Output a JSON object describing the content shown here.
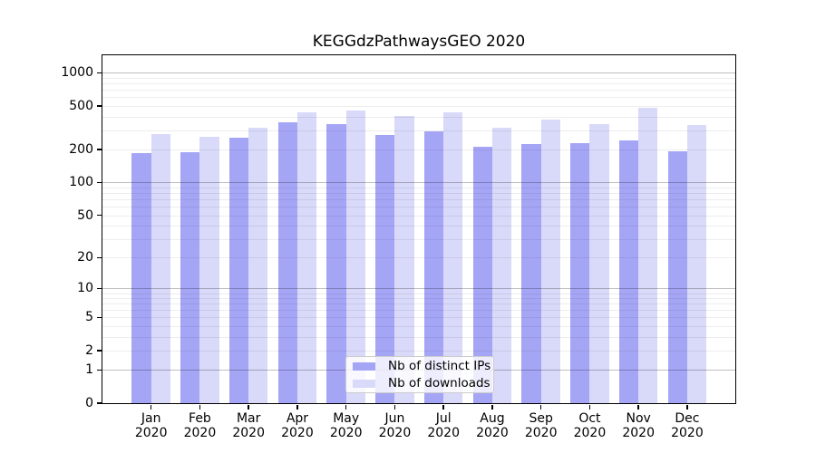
{
  "figure": {
    "background": "#ffffff"
  },
  "chart_data": {
    "type": "bar",
    "title": "KEGGdzPathwaysGEO 2020",
    "months": [
      "Jan",
      "Feb",
      "Mar",
      "Apr",
      "May",
      "Jun",
      "Jul",
      "Aug",
      "Sep",
      "Oct",
      "Nov",
      "Dec"
    ],
    "year": "2020",
    "series": [
      {
        "name": "Nb of distinct IPs",
        "color": "#a5a5f6",
        "values": [
          185,
          190,
          257,
          357,
          341,
          270,
          295,
          211,
          226,
          230,
          241,
          194
        ]
      },
      {
        "name": "Nb of downloads",
        "color": "#d9d9f9",
        "values": [
          277,
          263,
          316,
          437,
          452,
          405,
          440,
          318,
          378,
          343,
          478,
          337
        ]
      }
    ],
    "yscale": "log1p",
    "yticks": [
      0,
      1,
      2,
      5,
      10,
      20,
      50,
      100,
      200,
      500,
      1000
    ],
    "ylim": [
      0,
      1450
    ],
    "xlabel": "",
    "ylabel": "",
    "grid": {
      "major_at": [
        1,
        10,
        100,
        1000
      ],
      "major_color": "rgba(0,0,0,0.25)",
      "minor_color": "rgba(0,0,0,0.07)",
      "grid_on_top": true
    },
    "legend_position": "lower center"
  }
}
